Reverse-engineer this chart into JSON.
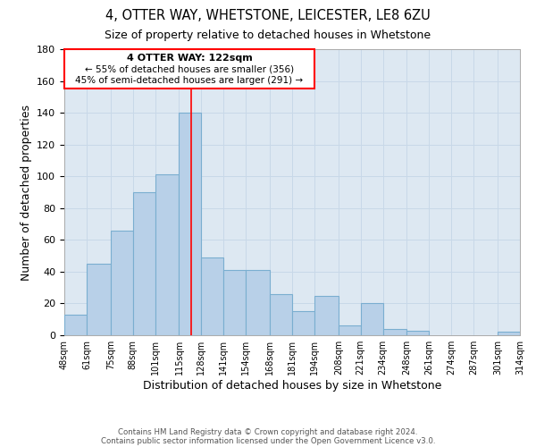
{
  "title": "4, OTTER WAY, WHETSTONE, LEICESTER, LE8 6ZU",
  "subtitle": "Size of property relative to detached houses in Whetstone",
  "xlabel": "Distribution of detached houses by size in Whetstone",
  "ylabel": "Number of detached properties",
  "footer_line1": "Contains HM Land Registry data © Crown copyright and database right 2024.",
  "footer_line2": "Contains public sector information licensed under the Open Government Licence v3.0.",
  "bar_left_edges": [
    48,
    61,
    75,
    88,
    101,
    115,
    128,
    141,
    154,
    168,
    181,
    194,
    208,
    221,
    234,
    248,
    261,
    274,
    287,
    301
  ],
  "bar_widths": [
    13,
    14,
    13,
    13,
    14,
    13,
    13,
    13,
    14,
    13,
    13,
    14,
    13,
    13,
    14,
    13,
    13,
    13,
    14,
    13
  ],
  "bar_heights": [
    13,
    45,
    66,
    90,
    101,
    140,
    49,
    41,
    41,
    26,
    15,
    25,
    6,
    20,
    4,
    3,
    0,
    0,
    0,
    2
  ],
  "bar_color": "#b8d0e8",
  "bar_edge_color": "#7aaed0",
  "tick_labels": [
    "48sqm",
    "61sqm",
    "75sqm",
    "88sqm",
    "101sqm",
    "115sqm",
    "128sqm",
    "141sqm",
    "154sqm",
    "168sqm",
    "181sqm",
    "194sqm",
    "208sqm",
    "221sqm",
    "234sqm",
    "248sqm",
    "261sqm",
    "274sqm",
    "287sqm",
    "301sqm",
    "314sqm"
  ],
  "ylim": [
    0,
    180
  ],
  "yticks": [
    0,
    20,
    40,
    60,
    80,
    100,
    120,
    140,
    160,
    180
  ],
  "property_line_x": 122,
  "annotation_title": "4 OTTER WAY: 122sqm",
  "annotation_line1": "← 55% of detached houses are smaller (356)",
  "annotation_line2": "45% of semi-detached houses are larger (291) →",
  "grid_color": "#c8d8e8",
  "plot_bg_color": "#dde8f2",
  "background_color": "#ffffff"
}
